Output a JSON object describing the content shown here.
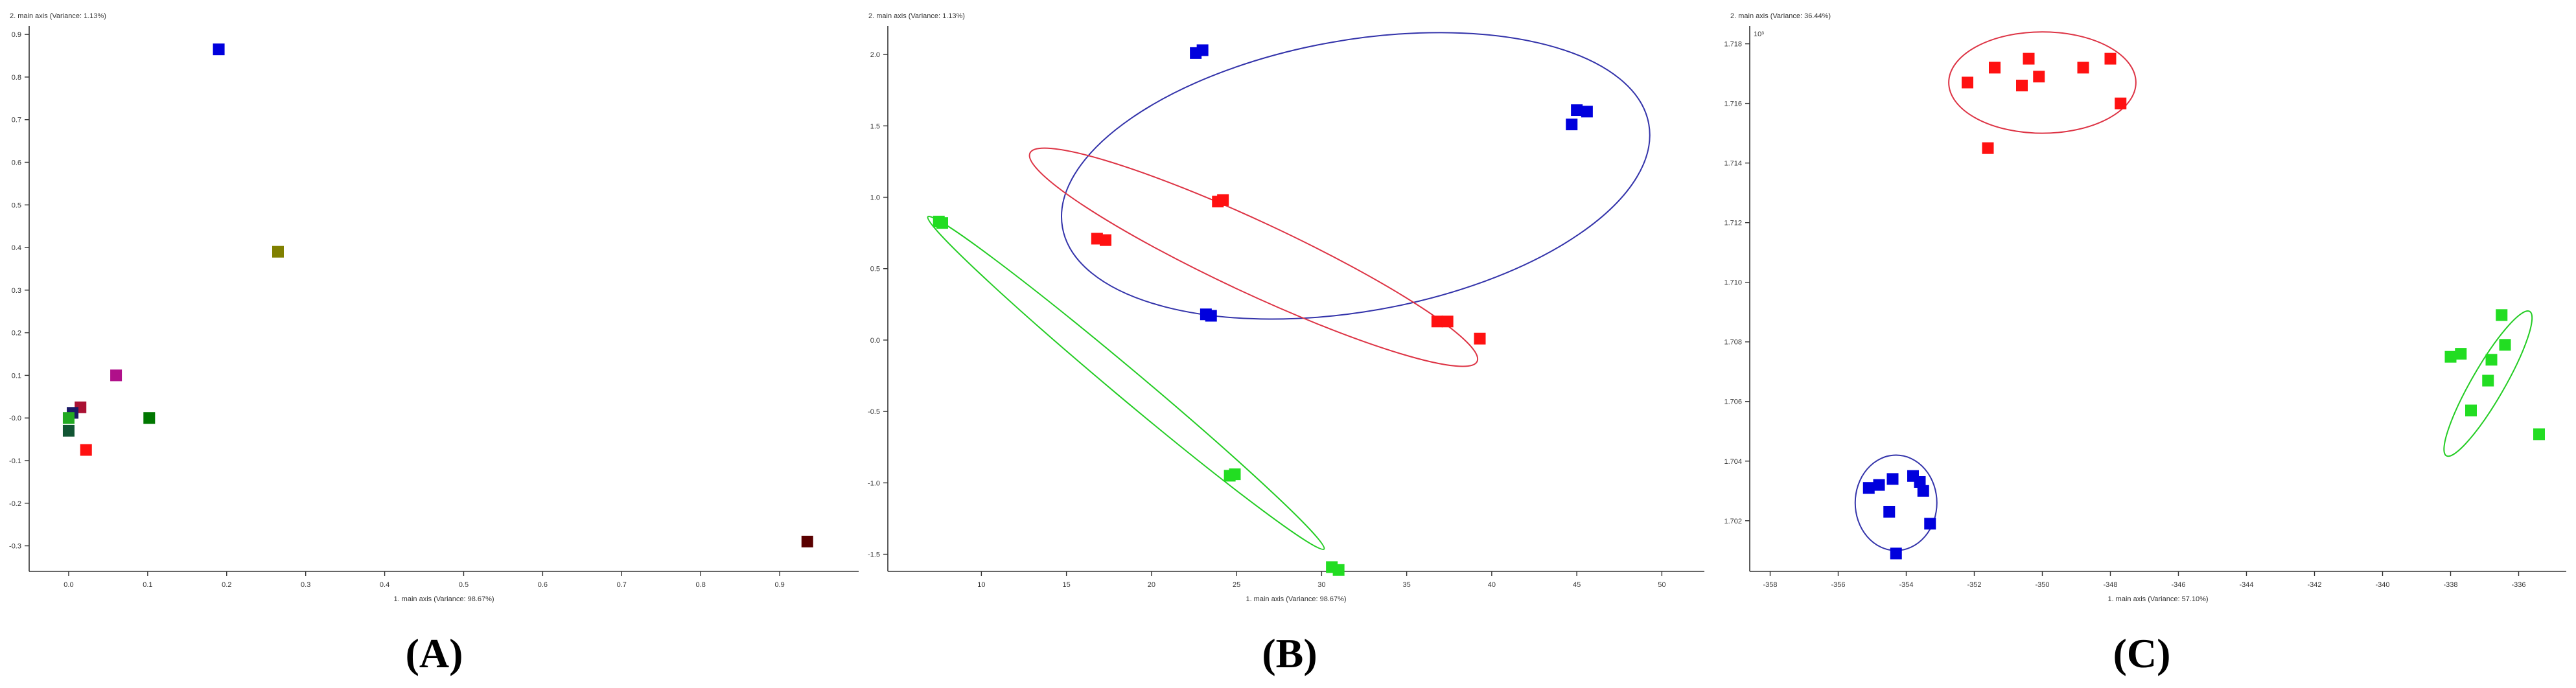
{
  "chart_data": [
    {
      "type": "scatter",
      "panel_label": "(A)",
      "xlabel": "1. main axis (Variance: 98.67%)",
      "ylabel": "2. main axis (Variance: 1.13%)",
      "xlim": [
        -0.05,
        1.0
      ],
      "ylim": [
        -0.36,
        0.92
      ],
      "xticks": [
        0.0,
        0.1,
        0.2,
        0.3,
        0.4,
        0.5,
        0.6,
        0.7,
        0.8,
        0.9
      ],
      "xtick_labels": [
        "0.0",
        "0.1",
        "0.2",
        "0.3",
        "0.4",
        "0.5",
        "0.6",
        "0.7",
        "0.8",
        "0.9"
      ],
      "yticks": [
        -0.3,
        -0.2,
        -0.1,
        0.0,
        0.1,
        0.2,
        0.3,
        0.4,
        0.5,
        0.6,
        0.7,
        0.8,
        0.9
      ],
      "ytick_labels": [
        "-0.3",
        "-0.2",
        "-0.1",
        "-0.0",
        "0.1",
        "0.2",
        "0.3",
        "0.4",
        "0.5",
        "0.6",
        "0.7",
        "0.8",
        "0.9"
      ],
      "grid": false,
      "points": [
        {
          "x": 0.19,
          "y": 0.865,
          "color": "#0000dd"
        },
        {
          "x": 0.265,
          "y": 0.39,
          "color": "#808000"
        },
        {
          "x": 0.06,
          "y": 0.1,
          "color": "#b0108a"
        },
        {
          "x": 0.015,
          "y": 0.025,
          "color": "#aa1133"
        },
        {
          "x": 0.005,
          "y": 0.012,
          "color": "#1a1a66"
        },
        {
          "x": 0.0,
          "y": 0.0,
          "color": "#22aa22"
        },
        {
          "x": 0.102,
          "y": 0.0,
          "color": "#007700"
        },
        {
          "x": 0.0,
          "y": -0.03,
          "color": "#115533"
        },
        {
          "x": 0.022,
          "y": -0.075,
          "color": "#ff1111"
        },
        {
          "x": 0.935,
          "y": -0.29,
          "color": "#5a0000"
        }
      ]
    },
    {
      "type": "scatter",
      "panel_label": "(B)",
      "xlabel": "1. main axis (Variance: 98.67%)",
      "ylabel": "2. main axis (Variance: 1.13%)",
      "xlim": [
        4.5,
        52.5
      ],
      "ylim": [
        -1.62,
        2.2
      ],
      "xticks": [
        10,
        15,
        20,
        25,
        30,
        35,
        40,
        45,
        50
      ],
      "xtick_labels": [
        "10",
        "15",
        "20",
        "25",
        "30",
        "35",
        "40",
        "45",
        "50"
      ],
      "yticks": [
        -1.5,
        -1.0,
        -0.5,
        0.0,
        0.5,
        1.0,
        1.5,
        2.0
      ],
      "ytick_labels": [
        "-1.5",
        "-1.0",
        "-0.5",
        "0.0",
        "0.5",
        "1.0",
        "1.5",
        "2.0"
      ],
      "grid": false,
      "series": [
        {
          "color": "#0000dd",
          "points": [
            [
              22.6,
              2.01
            ],
            [
              23.0,
              2.03
            ],
            [
              23.2,
              0.18
            ],
            [
              23.5,
              0.17
            ],
            [
              44.7,
              1.51
            ],
            [
              45.0,
              1.61
            ],
            [
              45.6,
              1.6
            ]
          ]
        },
        {
          "color": "#ff1111",
          "points": [
            [
              16.8,
              0.71
            ],
            [
              17.3,
              0.7
            ],
            [
              23.9,
              0.97
            ],
            [
              24.2,
              0.98
            ],
            [
              36.8,
              0.13
            ],
            [
              37.4,
              0.13
            ],
            [
              39.3,
              0.01
            ]
          ]
        },
        {
          "color": "#22dd22",
          "points": [
            [
              7.5,
              0.83
            ],
            [
              7.7,
              0.82
            ],
            [
              24.6,
              -0.95
            ],
            [
              24.9,
              -0.94
            ],
            [
              30.6,
              -1.59
            ],
            [
              31.0,
              -1.61
            ]
          ]
        }
      ],
      "ellipses": [
        {
          "color": "#3333aa",
          "cx": 32.0,
          "cy": 1.15,
          "rx": 17.5,
          "ry": 0.95,
          "angle_deg": -10
        },
        {
          "color": "#dd3344",
          "cx": 26.0,
          "cy": 0.58,
          "rx": 14.5,
          "ry": 0.25,
          "angle_deg": 25
        },
        {
          "color": "#22cc22",
          "cx": 18.5,
          "cy": -0.3,
          "rx": 15.2,
          "ry": 0.1,
          "angle_deg": 40
        }
      ]
    },
    {
      "type": "scatter",
      "panel_label": "(C)",
      "xlabel": "1. main axis (Variance: 57.10%)",
      "ylabel": "2. main axis (Variance: 36.44%)",
      "axis_multiplier": "10³",
      "xlim": [
        -358.6,
        -334.6
      ],
      "ylim": [
        1.7003,
        1.7186
      ],
      "xticks": [
        -358,
        -356,
        -354,
        -352,
        -350,
        -348,
        -346,
        -344,
        -342,
        -340,
        -338,
        -336
      ],
      "xtick_labels": [
        "-358",
        "-356",
        "-354",
        "-352",
        "-350",
        "-348",
        "-346",
        "-344",
        "-342",
        "-340",
        "-338",
        "-336"
      ],
      "yticks": [
        1.702,
        1.704,
        1.706,
        1.708,
        1.71,
        1.712,
        1.714,
        1.716,
        1.718
      ],
      "ytick_labels": [
        "1.702",
        "1.704",
        "1.706",
        "1.708",
        "1.710",
        "1.712",
        "1.714",
        "1.716",
        "1.718"
      ],
      "grid": false,
      "series": [
        {
          "color": "#ff1111",
          "points": [
            [
              -352.2,
              1.7167
            ],
            [
              -351.6,
              1.7145
            ],
            [
              -351.4,
              1.7172
            ],
            [
              -350.6,
              1.7166
            ],
            [
              -350.4,
              1.7175
            ],
            [
              -350.1,
              1.7169
            ],
            [
              -348.8,
              1.7172
            ],
            [
              -348.0,
              1.7175
            ],
            [
              -347.7,
              1.716
            ]
          ]
        },
        {
          "color": "#22dd22",
          "points": [
            [
              -338.0,
              1.7075
            ],
            [
              -337.7,
              1.7076
            ],
            [
              -337.4,
              1.7057
            ],
            [
              -336.9,
              1.7067
            ],
            [
              -336.8,
              1.7074
            ],
            [
              -336.5,
              1.7089
            ],
            [
              -336.4,
              1.7079
            ],
            [
              -335.4,
              1.7049
            ]
          ]
        },
        {
          "color": "#0000dd",
          "points": [
            [
              -355.1,
              1.7031
            ],
            [
              -354.8,
              1.7032
            ],
            [
              -354.5,
              1.7023
            ],
            [
              -354.4,
              1.7034
            ],
            [
              -354.3,
              1.7009
            ],
            [
              -353.8,
              1.7035
            ],
            [
              -353.6,
              1.7033
            ],
            [
              -353.5,
              1.703
            ],
            [
              -353.3,
              1.7019
            ]
          ]
        }
      ],
      "ellipses": [
        {
          "color": "#dd3344",
          "cx": -350.0,
          "cy": 1.7167,
          "rx": 2.75,
          "ry": 0.0017,
          "angle_deg": 0
        },
        {
          "color": "#22cc22",
          "cx": -336.9,
          "cy": 1.7066,
          "rx": 2.45,
          "ry": 0.00055,
          "angle_deg": -60
        },
        {
          "color": "#3333aa",
          "cx": -354.3,
          "cy": 1.7026,
          "rx": 1.2,
          "ry": 0.0016,
          "angle_deg": 0
        }
      ]
    }
  ]
}
